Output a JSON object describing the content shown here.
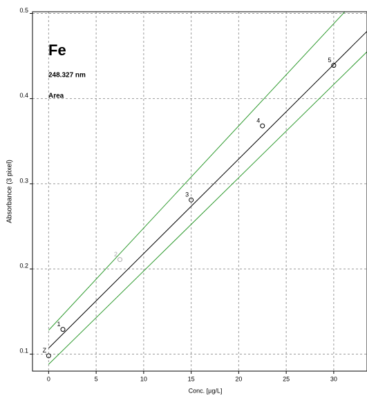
{
  "chart_data": {
    "type": "scatter",
    "title": "Fe",
    "subtitle": "248.327 nm",
    "mode": "Area",
    "x_label": "Conc. [µg/L]",
    "y_label": "Absorbance (3 pixel)",
    "xlim": [
      -1.7,
      33.5
    ],
    "ylim": [
      0.08,
      0.502
    ],
    "xticks": [
      0,
      5,
      10,
      15,
      20,
      25,
      30
    ],
    "yticks": [
      0.1,
      0.2,
      0.3,
      0.4,
      0.5
    ],
    "grid": true,
    "points": {
      "labels": [
        "Z",
        "1",
        "2",
        "3",
        "4",
        "5"
      ],
      "x": [
        0,
        1.5,
        7.5,
        15,
        22.5,
        30
      ],
      "y": [
        0.098,
        0.129,
        0.211,
        0.281,
        0.368,
        0.439
      ],
      "colors": [
        "#000000",
        "#000000",
        "#aaaaaa",
        "#000000",
        "#000000",
        "#000000"
      ]
    },
    "lines": [
      {
        "color": "#000000",
        "x": [
          0,
          33.5
        ],
        "y": [
          0.107,
          0.479
        ]
      },
      {
        "color": "#2e9a2e",
        "x": [
          0,
          33.5
        ],
        "y": [
          0.128,
          0.53
        ]
      },
      {
        "color": "#2e9a2e",
        "x": [
          0,
          33.5
        ],
        "y": [
          0.088,
          0.455
        ]
      }
    ]
  }
}
